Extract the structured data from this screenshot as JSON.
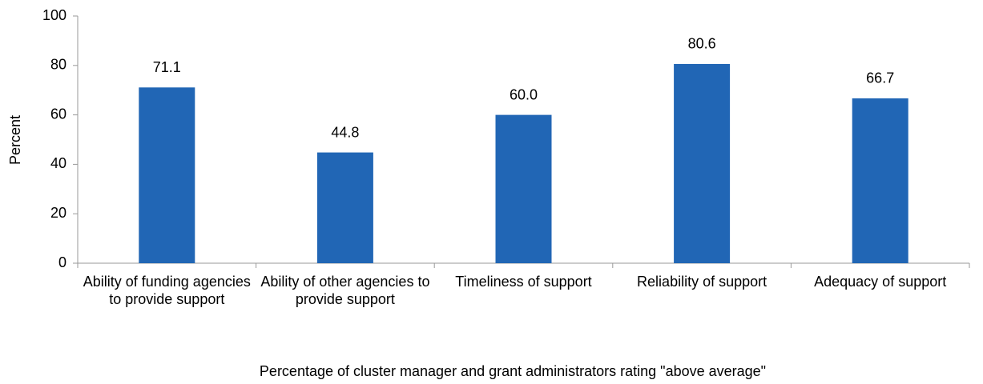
{
  "chart_data": {
    "type": "bar",
    "categories": [
      "Ability of funding agencies to provide support",
      "Ability of other agencies to provide support",
      "Timeliness of support",
      "Reliability of support",
      "Adequacy of support"
    ],
    "values": [
      71.1,
      44.8,
      60,
      80.6,
      66.7
    ],
    "value_labels": [
      "71.1",
      "44.8",
      "60.0",
      "80.6",
      "66.7"
    ],
    "color": "#2166b5",
    "ylim": [
      0,
      100
    ],
    "yticks": [
      0,
      20,
      40,
      60,
      80,
      100
    ],
    "ylabel": "Percent",
    "xlabel": "Percentage of cluster manager and grant administrators rating \"above average\"",
    "grid": false
  }
}
